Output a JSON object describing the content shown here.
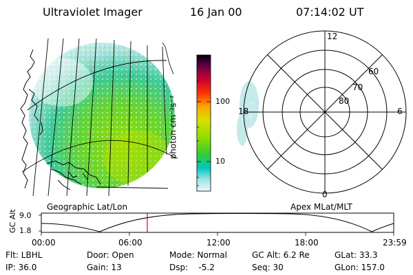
{
  "header": {
    "title": "Ultraviolet Imager",
    "date": "16 Jan 00",
    "time": "07:14:02 UT"
  },
  "colorbar": {
    "unit_label": "photon cm⁻²s⁻¹",
    "tick_100": "100",
    "tick_10": "10"
  },
  "left_panel": {
    "caption": "Geographic Lat/Lon"
  },
  "polar_plot": {
    "caption": "Apex MLat/MLT",
    "mlt_labels": {
      "top": "12",
      "left": "18",
      "right": "6",
      "bottom": "0"
    },
    "lat_labels": {
      "outer": "60",
      "middle": "70",
      "inner": "80"
    }
  },
  "orbit_plot": {
    "ylabel": "GC Alt",
    "ytick_top": "9.0",
    "ytick_bottom": "1.8",
    "xticks": [
      "00:00",
      "06:00",
      "12:00",
      "18:00",
      "23:59"
    ],
    "current_time_marker": "07:14"
  },
  "info": {
    "filter": "Flt: LBHL",
    "ip": "IP: 36.0",
    "door": "Door: Open",
    "gain": "Gain: 13",
    "mode": "Mode: Normal",
    "dsp": "Dsp:    -5.2",
    "gc_alt": "GC Alt: 6.2 Re",
    "seq": "Seq: 30",
    "glat": "GLat: 33.3",
    "glon": "GLon: 157.0"
  },
  "colors": {
    "marker": "#dd0000",
    "colorbar_stops": [
      "#e8f4f4",
      "#9fe0e0",
      "#00c8c0",
      "#33cc33",
      "#99dd00",
      "#e0e000",
      "#ffa500",
      "#ff3300",
      "#cc0033",
      "#99003a",
      "#330033",
      "#000000"
    ]
  }
}
